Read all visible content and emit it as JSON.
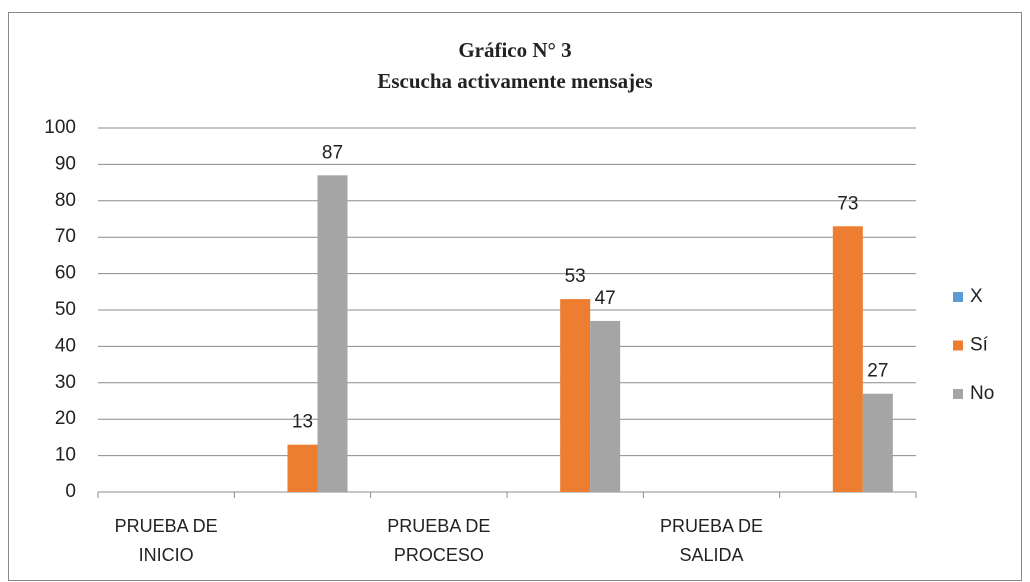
{
  "chart_data": {
    "type": "bar",
    "title": "Gráfico N° 3",
    "subtitle": "Escucha activamente mensajes",
    "categories": [
      "PRUEBA DE INICIO",
      null,
      "PRUEBA DE PROCESO",
      null,
      "PRUEBA DE SALIDA",
      null
    ],
    "series": [
      {
        "name": "X",
        "color": "#5b9bd5",
        "values": [
          null,
          null,
          null,
          null,
          null,
          null
        ]
      },
      {
        "name": "Sí",
        "color": "#ed7d31",
        "values": [
          null,
          13,
          null,
          53,
          null,
          73
        ]
      },
      {
        "name": "No",
        "color": "#a5a5a5",
        "values": [
          null,
          87,
          null,
          47,
          null,
          27
        ]
      }
    ],
    "ylim": [
      0,
      100
    ],
    "yticks": [
      0,
      10,
      20,
      30,
      40,
      50,
      60,
      70,
      80,
      90,
      100
    ],
    "grid": true,
    "legend": "right"
  }
}
